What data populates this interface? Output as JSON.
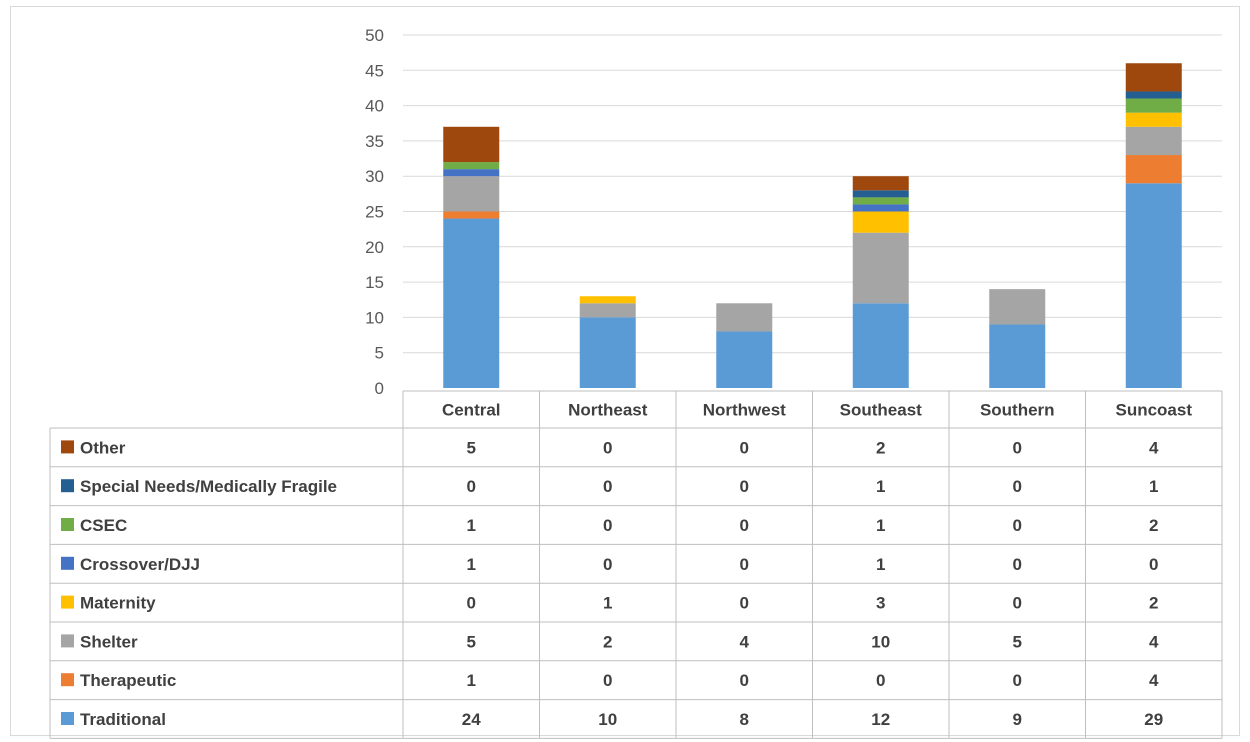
{
  "chart_data": {
    "type": "bar",
    "stacked": true,
    "title": "",
    "xlabel": "",
    "ylabel": "",
    "ylim": [
      0,
      50
    ],
    "yticks": [
      0,
      5,
      10,
      15,
      20,
      25,
      30,
      35,
      40,
      45,
      50
    ],
    "grid": true,
    "legend": "data-table",
    "categories": [
      "Central",
      "Northeast",
      "Northwest",
      "Southeast",
      "Southern",
      "Suncoast"
    ],
    "series": [
      {
        "name": "Traditional",
        "color": "#5b9bd5",
        "values": [
          24,
          10,
          8,
          12,
          9,
          29
        ]
      },
      {
        "name": "Therapeutic",
        "color": "#ed7d31",
        "values": [
          1,
          0,
          0,
          0,
          0,
          4
        ]
      },
      {
        "name": "Shelter",
        "color": "#a5a5a5",
        "values": [
          5,
          2,
          4,
          10,
          5,
          4
        ]
      },
      {
        "name": "Maternity",
        "color": "#ffc000",
        "values": [
          0,
          1,
          0,
          3,
          0,
          2
        ]
      },
      {
        "name": "Crossover/DJJ",
        "color": "#4472c4",
        "values": [
          1,
          0,
          0,
          1,
          0,
          0
        ]
      },
      {
        "name": "CSEC",
        "color": "#70ad47",
        "values": [
          1,
          0,
          0,
          1,
          0,
          2
        ]
      },
      {
        "name": "Special Needs/Medically Fragile",
        "color": "#255e91",
        "values": [
          0,
          0,
          0,
          1,
          0,
          1
        ]
      },
      {
        "name": "Other",
        "color": "#9e480e",
        "values": [
          5,
          0,
          0,
          2,
          0,
          4
        ]
      }
    ]
  }
}
